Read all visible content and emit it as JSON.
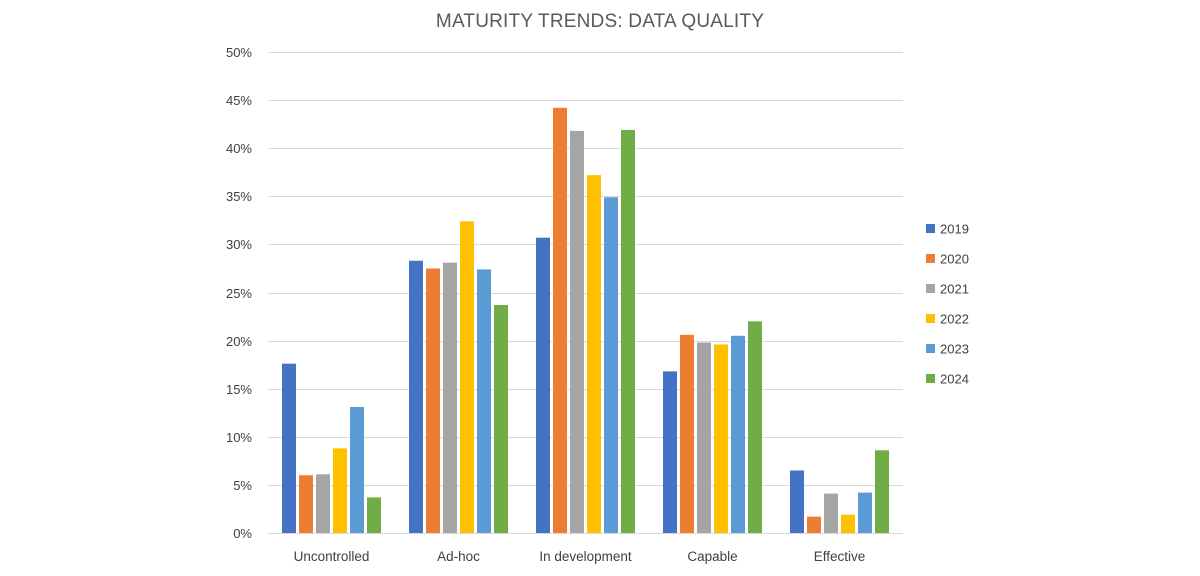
{
  "chart_data": {
    "type": "bar",
    "title": "MATURITY TRENDS: DATA QUALITY",
    "xlabel": "",
    "ylabel": "",
    "categories": [
      "Uncontrolled",
      "Ad-hoc",
      "In development",
      "Capable",
      "Effective"
    ],
    "series": [
      {
        "name": "2019",
        "color": "#4472C4",
        "values": [
          17.6,
          28.3,
          30.7,
          16.8,
          6.5
        ]
      },
      {
        "name": "2020",
        "color": "#ED7D31",
        "values": [
          6.0,
          27.5,
          44.2,
          20.6,
          1.7
        ]
      },
      {
        "name": "2021",
        "color": "#A5A5A5",
        "values": [
          6.1,
          28.1,
          41.8,
          19.8,
          4.1
        ]
      },
      {
        "name": "2022",
        "color": "#FFC000",
        "values": [
          8.8,
          32.4,
          37.2,
          19.6,
          1.9
        ]
      },
      {
        "name": "2023",
        "color": "#5B9BD5",
        "values": [
          13.1,
          27.4,
          34.9,
          20.5,
          4.2
        ]
      },
      {
        "name": "2024",
        "color": "#70AD47",
        "values": [
          3.7,
          23.7,
          41.9,
          22.0,
          8.6
        ]
      }
    ],
    "ylim": [
      0,
      50
    ],
    "yticks": [
      0,
      5,
      10,
      15,
      20,
      25,
      30,
      35,
      40,
      45,
      50
    ],
    "ytick_format": "%",
    "grid": "horizontal",
    "legend_position": "right"
  }
}
